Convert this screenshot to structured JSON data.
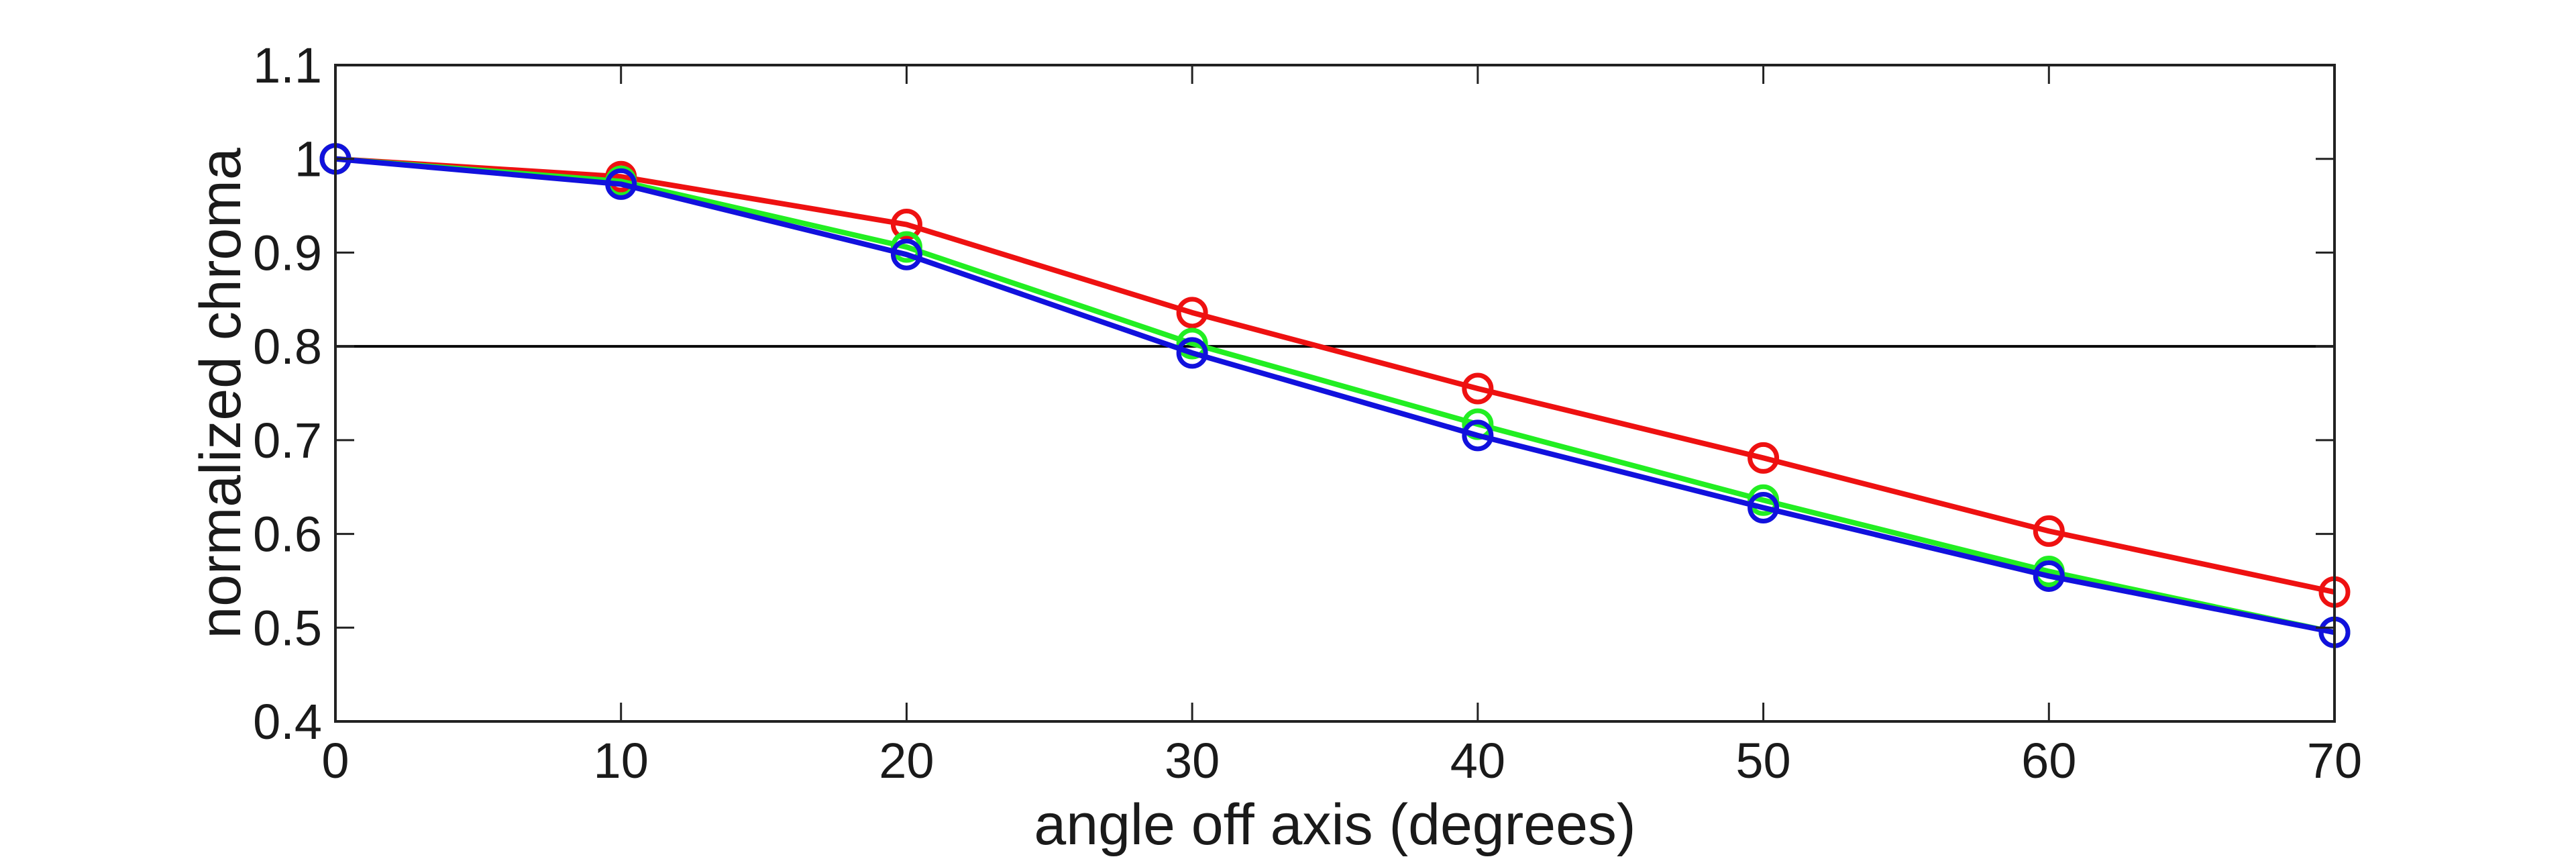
{
  "chart_data": {
    "type": "line",
    "xlabel": "angle off axis (degrees)",
    "ylabel": "normalized chroma",
    "xlim": [
      0,
      70
    ],
    "ylim": [
      0.4,
      1.1
    ],
    "xticks": [
      0,
      10,
      20,
      30,
      40,
      50,
      60,
      70
    ],
    "yticks": [
      0.4,
      0.5,
      0.6,
      0.7,
      0.8,
      0.9,
      1,
      1.1
    ],
    "xtick_labels": [
      "0",
      "10",
      "20",
      "30",
      "40",
      "50",
      "60",
      "70"
    ],
    "ytick_labels": [
      "0.4",
      "0.5",
      "0.6",
      "0.7",
      "0.8",
      "0.9",
      "1",
      "1.1"
    ],
    "grid": false,
    "reference_line": {
      "y": 0.8,
      "color": "#000000"
    },
    "x": [
      0,
      10,
      20,
      30,
      40,
      50,
      60,
      70
    ],
    "series": [
      {
        "color": "#ee1111",
        "values": [
          1.0,
          0.981,
          0.93,
          0.836,
          0.755,
          0.681,
          0.603,
          0.538
        ]
      },
      {
        "color": "#22ee22",
        "values": [
          1.0,
          0.976,
          0.906,
          0.803,
          0.717,
          0.636,
          0.56,
          0.495
        ]
      },
      {
        "color": "#1111dd",
        "values": [
          1.0,
          0.973,
          0.898,
          0.793,
          0.705,
          0.628,
          0.555,
          0.495
        ]
      }
    ]
  }
}
